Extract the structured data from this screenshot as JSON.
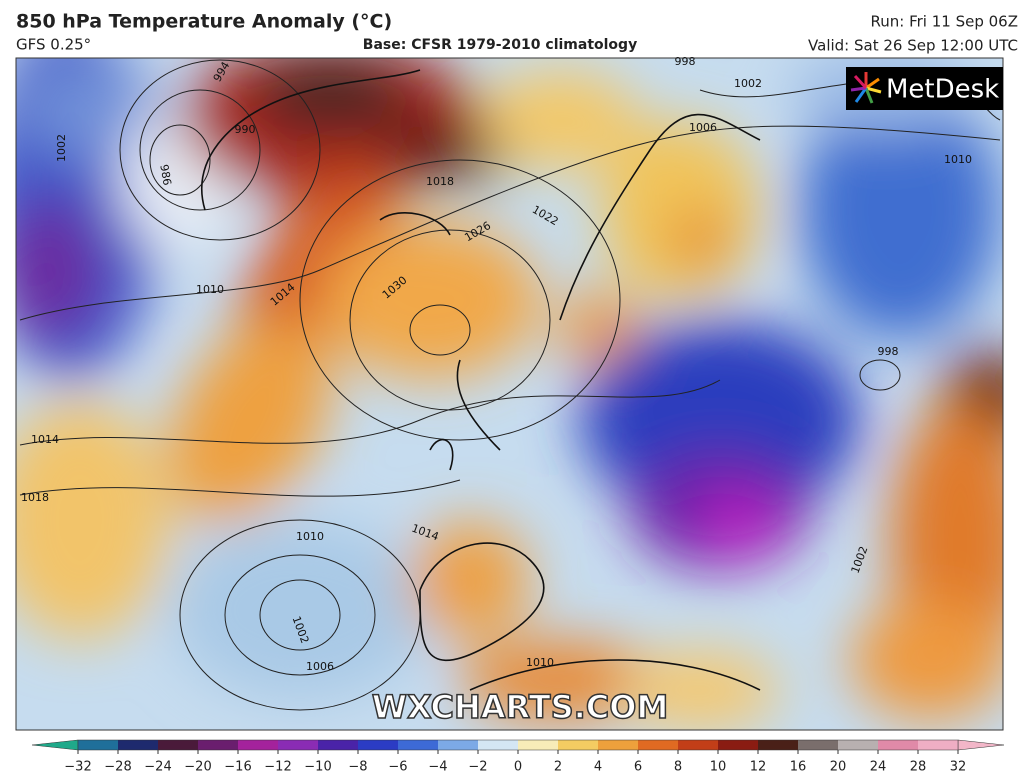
{
  "header": {
    "title": "850 hPa Temperature Anomaly (°C)",
    "model": "GFS 0.25°",
    "base": "Base: CFSR 1979-2010 climatology",
    "run": "Run: Fri 11 Sep 06Z",
    "valid": "Valid: Sat 26 Sep 12:00 UTC"
  },
  "logo": "MetDesk",
  "watermark": "WXCHARTS.COM",
  "isobar_labels": [
    994,
    990,
    986,
    1002,
    1010,
    1014,
    1018,
    1026,
    1030,
    1022,
    1006,
    1002,
    998,
    1010,
    998,
    1014,
    1018,
    1010,
    1014,
    1002,
    1006,
    1010,
    1002
  ],
  "colorbar": {
    "ticks": [
      {
        "value": -32,
        "label": "−32"
      },
      {
        "value": -28,
        "label": "−28"
      },
      {
        "value": -24,
        "label": "−24"
      },
      {
        "value": -20,
        "label": "−20"
      },
      {
        "value": -16,
        "label": "−16"
      },
      {
        "value": -12,
        "label": "−12"
      },
      {
        "value": -10,
        "label": "−10"
      },
      {
        "value": -8,
        "label": "−8"
      },
      {
        "value": -6,
        "label": "−6"
      },
      {
        "value": -4,
        "label": "−4"
      },
      {
        "value": -2,
        "label": "−2"
      },
      0,
      2,
      4,
      6,
      8,
      10,
      12,
      16,
      20,
      24,
      28,
      32
    ],
    "under_color": "#1fa98a",
    "over_color": "#f2b6c8",
    "colors": [
      "#1f6f9a",
      "#1e2a6e",
      "#4a1a3a",
      "#6a1e6e",
      "#a4229c",
      "#8a2cb4",
      "#4a23a8",
      "#2b3cc4",
      "#3d6ad6",
      "#7ca9e6",
      "#d4e6f4",
      "#f7ecb8",
      "#f4cc62",
      "#eea03c",
      "#e06a22",
      "#c23e18",
      "#8a1c12",
      "#4a2018",
      "#7a6e6c",
      "#b8b0b0",
      "#e08aa8",
      "#efaec4"
    ]
  }
}
